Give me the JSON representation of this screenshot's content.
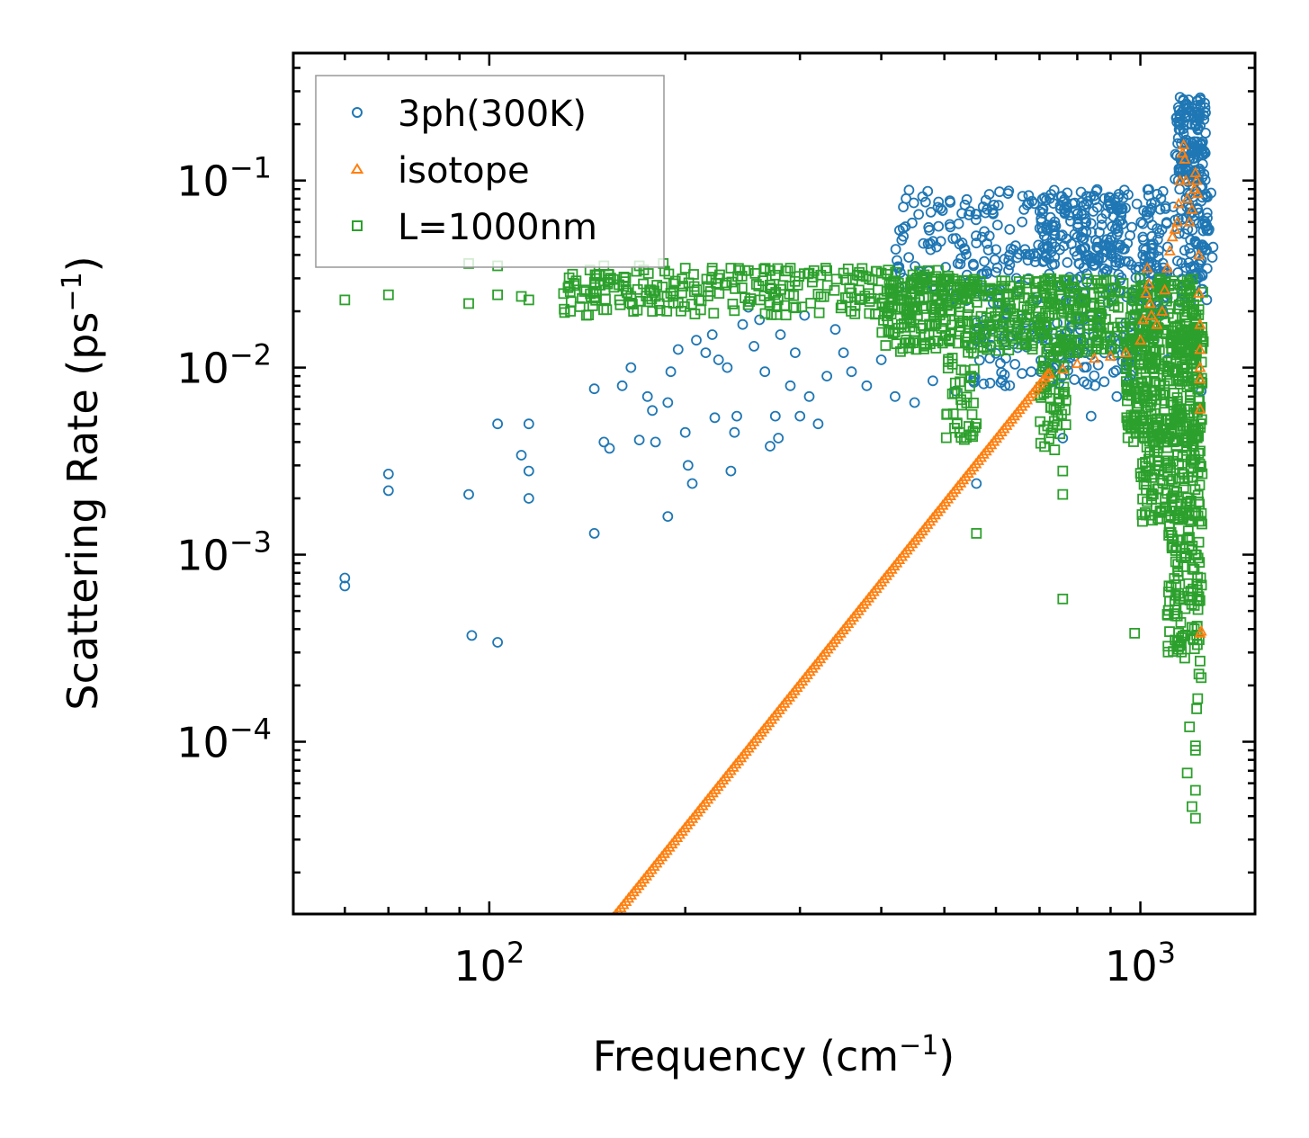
{
  "chart_data": {
    "type": "scatter",
    "xlabel": "Frequency (cm",
    "xlabel_sup": "−1",
    "xlabel_end": ")",
    "ylabel": "Scattering Rate (ps",
    "ylabel_sup": "−1",
    "ylabel_end": ")",
    "xscale": "log",
    "yscale": "log",
    "xlim": [
      50,
      1500
    ],
    "ylim": [
      1.2e-05,
      0.48
    ],
    "x_ticks": [
      {
        "value": 100,
        "base": "10",
        "exp": "2"
      },
      {
        "value": 1000,
        "base": "10",
        "exp": "3"
      }
    ],
    "y_ticks": [
      {
        "value": 0.1,
        "base": "10",
        "exp": "−1"
      },
      {
        "value": 0.01,
        "base": "10",
        "exp": "−2"
      },
      {
        "value": 0.001,
        "base": "10",
        "exp": "−3"
      },
      {
        "value": 0.0001,
        "base": "10",
        "exp": "−4"
      }
    ],
    "legend_position": "top-left",
    "colors": {
      "3ph": "#1f77b4",
      "isotope": "#ff7f0e",
      "boundary": "#2ca02c"
    },
    "series": [
      {
        "name": "3ph(300K)",
        "marker": "circle",
        "color": "#1f77b4",
        "points": [
          [
            60,
            0.00075
          ],
          [
            60,
            0.00068
          ],
          [
            70,
            0.0027
          ],
          [
            70,
            0.0022
          ],
          [
            93,
            0.0021
          ],
          [
            94,
            0.00037
          ],
          [
            103,
            0.00034
          ],
          [
            103,
            0.005
          ],
          [
            112,
            0.0034
          ],
          [
            115,
            0.0028
          ],
          [
            115,
            0.002
          ],
          [
            115,
            0.005
          ],
          [
            145,
            0.0077
          ],
          [
            145,
            0.0013
          ],
          [
            150,
            0.004
          ],
          [
            153,
            0.0037
          ],
          [
            160,
            0.008
          ],
          [
            165,
            0.01
          ],
          [
            170,
            0.0041
          ],
          [
            175,
            0.007
          ],
          [
            178,
            0.0059
          ],
          [
            180,
            0.004
          ],
          [
            188,
            0.0016
          ],
          [
            188,
            0.0065
          ],
          [
            190,
            0.0095
          ],
          [
            195,
            0.0125
          ],
          [
            200,
            0.0045
          ],
          [
            202,
            0.003
          ],
          [
            205,
            0.0024
          ],
          [
            208,
            0.014
          ],
          [
            215,
            0.012
          ],
          [
            220,
            0.015
          ],
          [
            222,
            0.0054
          ],
          [
            225,
            0.011
          ],
          [
            232,
            0.01
          ],
          [
            235,
            0.0028
          ],
          [
            238,
            0.0045
          ],
          [
            240,
            0.0055
          ],
          [
            245,
            0.017
          ],
          [
            250,
            0.021
          ],
          [
            255,
            0.013
          ],
          [
            260,
            0.018
          ],
          [
            265,
            0.0095
          ],
          [
            270,
            0.0038
          ],
          [
            275,
            0.0055
          ],
          [
            278,
            0.0042
          ],
          [
            280,
            0.015
          ],
          [
            290,
            0.008
          ],
          [
            295,
            0.012
          ],
          [
            300,
            0.0055
          ],
          [
            305,
            0.019
          ],
          [
            310,
            0.007
          ],
          [
            320,
            0.005
          ],
          [
            330,
            0.009
          ],
          [
            340,
            0.016
          ],
          [
            350,
            0.012
          ],
          [
            360,
            0.0095
          ],
          [
            380,
            0.008
          ],
          [
            400,
            0.011
          ],
          [
            420,
            0.007
          ],
          [
            450,
            0.0065
          ],
          [
            480,
            0.0085
          ],
          [
            520,
            0.0075
          ],
          [
            560,
            0.0024
          ],
          [
            620,
            0.008
          ],
          [
            680,
            0.0095
          ],
          [
            760,
            0.0042
          ],
          [
            840,
            0.0055
          ],
          [
            920,
            0.007
          ],
          [
            960,
            0.0085
          ],
          [
            1050,
            0.014
          ],
          [
            1100,
            0.011
          ],
          [
            1180,
            0.009
          ],
          [
            1240,
            0.0075
          ]
        ],
        "bands": [
          {
            "x": [
              420,
              1300
            ],
            "y": [
              0.022,
              0.09
            ],
            "n": 380
          },
          {
            "x": [
              550,
              1000
            ],
            "y": [
              0.008,
              0.02
            ],
            "n": 140
          },
          {
            "x": [
              700,
              950
            ],
            "y": [
              0.035,
              0.085
            ],
            "n": 110
          },
          {
            "x": [
              1000,
              1100
            ],
            "y": [
              0.018,
              0.09
            ],
            "n": 60
          },
          {
            "x": [
              1130,
              1260
            ],
            "y": [
              0.1,
              0.28
            ],
            "n": 140
          },
          {
            "x": [
              1180,
              1270
            ],
            "y": [
              0.03,
              0.1
            ],
            "n": 50
          }
        ]
      },
      {
        "name": "isotope",
        "marker": "triangle",
        "color": "#ff7f0e",
        "curve": {
          "x": [
            155,
            720
          ],
          "y_at_start": 1.15e-05,
          "y_at_end": 0.0092
        },
        "extra_points": [
          [
            725,
            0.0093
          ],
          [
            760,
            0.0098
          ],
          [
            800,
            0.0105
          ],
          [
            850,
            0.0112
          ],
          [
            900,
            0.0115
          ],
          [
            950,
            0.012
          ],
          [
            1000,
            0.014
          ],
          [
            1010,
            0.018
          ],
          [
            1020,
            0.025
          ],
          [
            1025,
            0.034
          ],
          [
            1030,
            0.028
          ],
          [
            1035,
            0.022
          ],
          [
            1040,
            0.019
          ],
          [
            1060,
            0.017
          ],
          [
            1080,
            0.02
          ],
          [
            1090,
            0.026
          ],
          [
            1100,
            0.034
          ],
          [
            1110,
            0.042
          ],
          [
            1120,
            0.05
          ],
          [
            1130,
            0.055
          ],
          [
            1140,
            0.06
          ],
          [
            1145,
            0.075
          ],
          [
            1150,
            0.1
          ],
          [
            1160,
            0.14
          ],
          [
            1165,
            0.155
          ],
          [
            1170,
            0.13
          ],
          [
            1175,
            0.1
          ],
          [
            1180,
            0.08
          ],
          [
            1190,
            0.06
          ],
          [
            1200,
            0.07
          ],
          [
            1210,
            0.09
          ],
          [
            1215,
            0.11
          ],
          [
            1220,
            0.1
          ],
          [
            1225,
            0.085
          ],
          [
            1230,
            0.04
          ],
          [
            1230,
            0.025
          ],
          [
            1235,
            0.017
          ],
          [
            1235,
            0.0125
          ],
          [
            1235,
            0.01
          ],
          [
            1235,
            0.0087
          ],
          [
            1235,
            0.006
          ],
          [
            1235,
            0.00038
          ],
          [
            1240,
            0.00039
          ]
        ]
      },
      {
        "name": "L=1000nm",
        "marker": "square",
        "color": "#2ca02c",
        "points": [
          [
            60,
            0.023
          ],
          [
            70,
            0.0245
          ],
          [
            93,
            0.022
          ],
          [
            93,
            0.036
          ],
          [
            103,
            0.035
          ],
          [
            103,
            0.0245
          ],
          [
            112,
            0.024
          ],
          [
            115,
            0.023
          ],
          [
            145,
            0.0235
          ],
          [
            150,
            0.035
          ],
          [
            165,
            0.024
          ],
          [
            170,
            0.035
          ],
          [
            180,
            0.024
          ],
          [
            185,
            0.036
          ],
          [
            200,
            0.034
          ],
          [
            210,
            0.023
          ],
          [
            220,
            0.034
          ],
          [
            235,
            0.034
          ],
          [
            250,
            0.033
          ],
          [
            270,
            0.033
          ],
          [
            290,
            0.034
          ],
          [
            310,
            0.032
          ],
          [
            330,
            0.033
          ],
          [
            350,
            0.032
          ],
          [
            370,
            0.031
          ],
          [
            400,
            0.032
          ],
          [
            560,
            0.0013
          ],
          [
            760,
            0.00058
          ],
          [
            760,
            0.0021
          ],
          [
            760,
            0.0028
          ],
          [
            980,
            0.00038
          ],
          [
            1100,
            0.00048
          ],
          [
            1150,
            0.0006
          ],
          [
            1170,
            0.00028
          ],
          [
            1180,
            6.8e-05
          ],
          [
            1190,
            0.00012
          ],
          [
            1200,
            4.5e-05
          ],
          [
            1215,
            3.9e-05
          ],
          [
            1215,
            5.5e-05
          ],
          [
            1215,
            9e-05
          ],
          [
            1215,
            9.5e-05
          ],
          [
            1220,
            0.00015
          ],
          [
            1225,
            0.00017
          ],
          [
            1230,
            0.00023
          ],
          [
            1235,
            0.00027
          ],
          [
            1240,
            0.00022
          ]
        ],
        "bands": [
          {
            "x": [
              130,
              520
            ],
            "y": [
              0.019,
              0.034
            ],
            "n": 260
          },
          {
            "x": [
              400,
              1250
            ],
            "y": [
              0.012,
              0.03
            ],
            "n": 620
          },
          {
            "x": [
              500,
              560
            ],
            "y": [
              0.004,
              0.012
            ],
            "n": 40
          },
          {
            "x": [
              700,
              770
            ],
            "y": [
              0.0035,
              0.012
            ],
            "n": 50
          },
          {
            "x": [
              950,
              1245
            ],
            "y": [
              0.004,
              0.016
            ],
            "n": 300
          },
          {
            "x": [
              1000,
              1245
            ],
            "y": [
              0.0015,
              0.005
            ],
            "n": 150
          },
          {
            "x": [
              1100,
              1245
            ],
            "y": [
              0.0003,
              0.0018
            ],
            "n": 120
          }
        ]
      }
    ]
  }
}
